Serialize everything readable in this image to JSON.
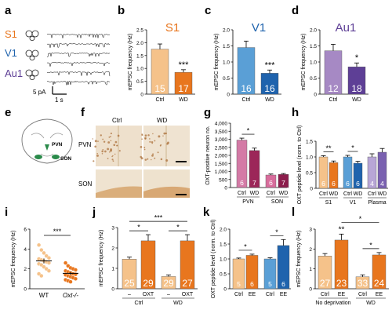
{
  "colors": {
    "s1_light": "#f5c28a",
    "s1_dark": "#e8761e",
    "v1_light": "#5a9fd6",
    "v1_dark": "#1f63ad",
    "au1_light": "#a689c4",
    "au1_dark": "#5e3f96",
    "oxt_light": "#d47aa6",
    "oxt_dark": "#9c2659",
    "son_light": "#d86d9c",
    "son_dark": "#8c1d4c",
    "plasma_light": "#b8a6d6",
    "plasma_dark": "#7a61b0",
    "grey": "#cfcfcf"
  },
  "labels": {
    "a": "a",
    "b": "b",
    "c": "c",
    "d": "d",
    "e": "e",
    "f": "f",
    "g": "g",
    "h": "h",
    "i": "i",
    "j": "j",
    "k": "k",
    "l": "l"
  },
  "panel_a": {
    "rows": [
      "S1",
      "V1",
      "Au1"
    ],
    "scale_y": "5 pA",
    "scale_x": "1 s"
  },
  "panel_e": {
    "pvn": "PVN",
    "son": "SON"
  },
  "panel_f": {
    "ctrl": "Ctrl",
    "wd": "WD",
    "pvn": "PVN",
    "son": "SON"
  },
  "chart_data": [
    {
      "panel": "b",
      "type": "bar",
      "title": "S1",
      "ylabel": "mEPSC frequency (Hz)",
      "categories": [
        "Ctrl",
        "WD"
      ],
      "values": [
        1.75,
        0.85
      ],
      "errors": [
        0.2,
        0.1
      ],
      "n": [
        "15",
        "17"
      ],
      "ylim": [
        0,
        2.5
      ],
      "yticks": [
        "0",
        "0.5",
        "1.0",
        "1.5",
        "2.0",
        "2.5"
      ],
      "sig": [
        "***"
      ]
    },
    {
      "panel": "c",
      "type": "bar",
      "title": "V1",
      "ylabel": "mEPSC frequency (Hz)",
      "categories": [
        "Ctrl",
        "WD"
      ],
      "values": [
        1.45,
        0.65
      ],
      "errors": [
        0.2,
        0.1
      ],
      "n": [
        "16",
        "16"
      ],
      "ylim": [
        0,
        2.0
      ],
      "yticks": [
        "0",
        "0.5",
        "1.0",
        "1.5",
        "2.0"
      ],
      "sig": [
        "***"
      ]
    },
    {
      "panel": "d",
      "type": "bar",
      "title": "Au1",
      "ylabel": "mEPSC frequency (Hz)",
      "categories": [
        "Ctrl",
        "WD"
      ],
      "values": [
        1.35,
        0.85
      ],
      "errors": [
        0.2,
        0.12
      ],
      "n": [
        "12",
        "18"
      ],
      "ylim": [
        0,
        2.0
      ],
      "yticks": [
        "0",
        "0.5",
        "1.0",
        "1.5",
        "2.0"
      ],
      "sig": [
        "*"
      ]
    },
    {
      "panel": "g",
      "type": "bar",
      "ylabel": "OXT-positive neuron no.",
      "categories": [
        "Ctrl",
        "WD",
        "Ctrl",
        "WD"
      ],
      "groups": [
        "PVN",
        "SON"
      ],
      "values": [
        2950,
        2300,
        780,
        820
      ],
      "errors": [
        120,
        150,
        60,
        50
      ],
      "n": [
        "6",
        "7",
        "6",
        "7"
      ],
      "ylim": [
        0,
        4000
      ],
      "yticks": [
        "0",
        "500",
        "1,000",
        "1,500",
        "2,000",
        "2,500",
        "3,000",
        "3,500",
        "4,000"
      ],
      "sig": [
        "*"
      ]
    },
    {
      "panel": "h",
      "type": "bar",
      "ylabel": "OXT peptide level (norm. to Ctrl)",
      "categories": [
        "Ctrl",
        "WD",
        "Ctrl",
        "WD",
        "Ctrl",
        "WD"
      ],
      "groups": [
        "S1",
        "V1",
        "Plasma"
      ],
      "values": [
        1.0,
        0.82,
        1.0,
        0.8,
        1.0,
        1.15
      ],
      "errors": [
        0.04,
        0.05,
        0.05,
        0.06,
        0.1,
        0.12
      ],
      "n": [
        "6",
        "6",
        "6",
        "6",
        "4",
        "4"
      ],
      "ylim": [
        0,
        1.5
      ],
      "yticks": [
        "0",
        "0.5",
        "1.0",
        "1.5"
      ],
      "sig": [
        "**",
        "*"
      ]
    },
    {
      "panel": "i",
      "type": "scatter",
      "ylabel": "mEPSC frequency (Hz)",
      "categories": [
        "WT",
        "Oxt-/-"
      ],
      "ylim": [
        0,
        6
      ],
      "yticks": [
        "0",
        "2",
        "4",
        "6"
      ],
      "means": [
        2.8,
        1.55
      ],
      "errors": [
        0.25,
        0.15
      ],
      "points": [
        [
          4.4,
          3.9,
          3.6,
          3.3,
          3.1,
          3.0,
          2.9,
          2.8,
          2.7,
          2.6,
          2.5,
          2.4,
          2.2,
          2.0,
          1.8,
          1.5,
          1.3
        ],
        [
          2.6,
          2.3,
          2.1,
          2.0,
          1.9,
          1.8,
          1.7,
          1.6,
          1.5,
          1.45,
          1.4,
          1.3,
          1.2,
          1.1,
          1.0,
          0.9,
          0.8,
          0.7
        ]
      ],
      "sig": [
        "***"
      ]
    },
    {
      "panel": "j",
      "type": "bar",
      "ylabel": "mEPSC frequency (Hz)",
      "categories": [
        "–",
        "OXT",
        "–",
        "OXT"
      ],
      "groups": [
        "Ctrl",
        "WD"
      ],
      "values": [
        1.45,
        2.35,
        0.6,
        2.35
      ],
      "errors": [
        0.1,
        0.3,
        0.08,
        0.3
      ],
      "n": [
        "25",
        "29",
        "29",
        "27"
      ],
      "ylim": [
        0,
        3
      ],
      "yticks": [
        "0",
        "1",
        "2",
        "3"
      ],
      "sig": [
        "*",
        "*",
        "***"
      ]
    },
    {
      "panel": "k",
      "type": "bar",
      "ylabel": "OXT peptide level (norm. to Ctrl)",
      "categories": [
        "Ctrl",
        "EE",
        "Ctrl",
        "EE"
      ],
      "values": [
        1.0,
        1.12,
        1.0,
        1.45
      ],
      "errors": [
        0.03,
        0.04,
        0.04,
        0.2
      ],
      "n": [
        "5",
        "6",
        "5",
        "6"
      ],
      "ylim": [
        0,
        2.0
      ],
      "yticks": [
        "0",
        "0.5",
        "1.0",
        "1.5",
        "2.0"
      ],
      "sig": [
        "*",
        "*"
      ]
    },
    {
      "panel": "l",
      "type": "bar",
      "ylabel": "mEPSC frequency (Hz)",
      "categories": [
        "Ctrl",
        "EE",
        "Ctrl",
        "EE"
      ],
      "groups": [
        "No deprivation",
        "WD"
      ],
      "values": [
        1.65,
        2.45,
        0.6,
        1.7
      ],
      "errors": [
        0.12,
        0.3,
        0.1,
        0.12
      ],
      "n": [
        "27",
        "23",
        "33",
        "24"
      ],
      "ylim": [
        0,
        3
      ],
      "yticks": [
        "0",
        "1",
        "2",
        "3"
      ],
      "sig": [
        "**",
        "*",
        "*"
      ]
    }
  ]
}
